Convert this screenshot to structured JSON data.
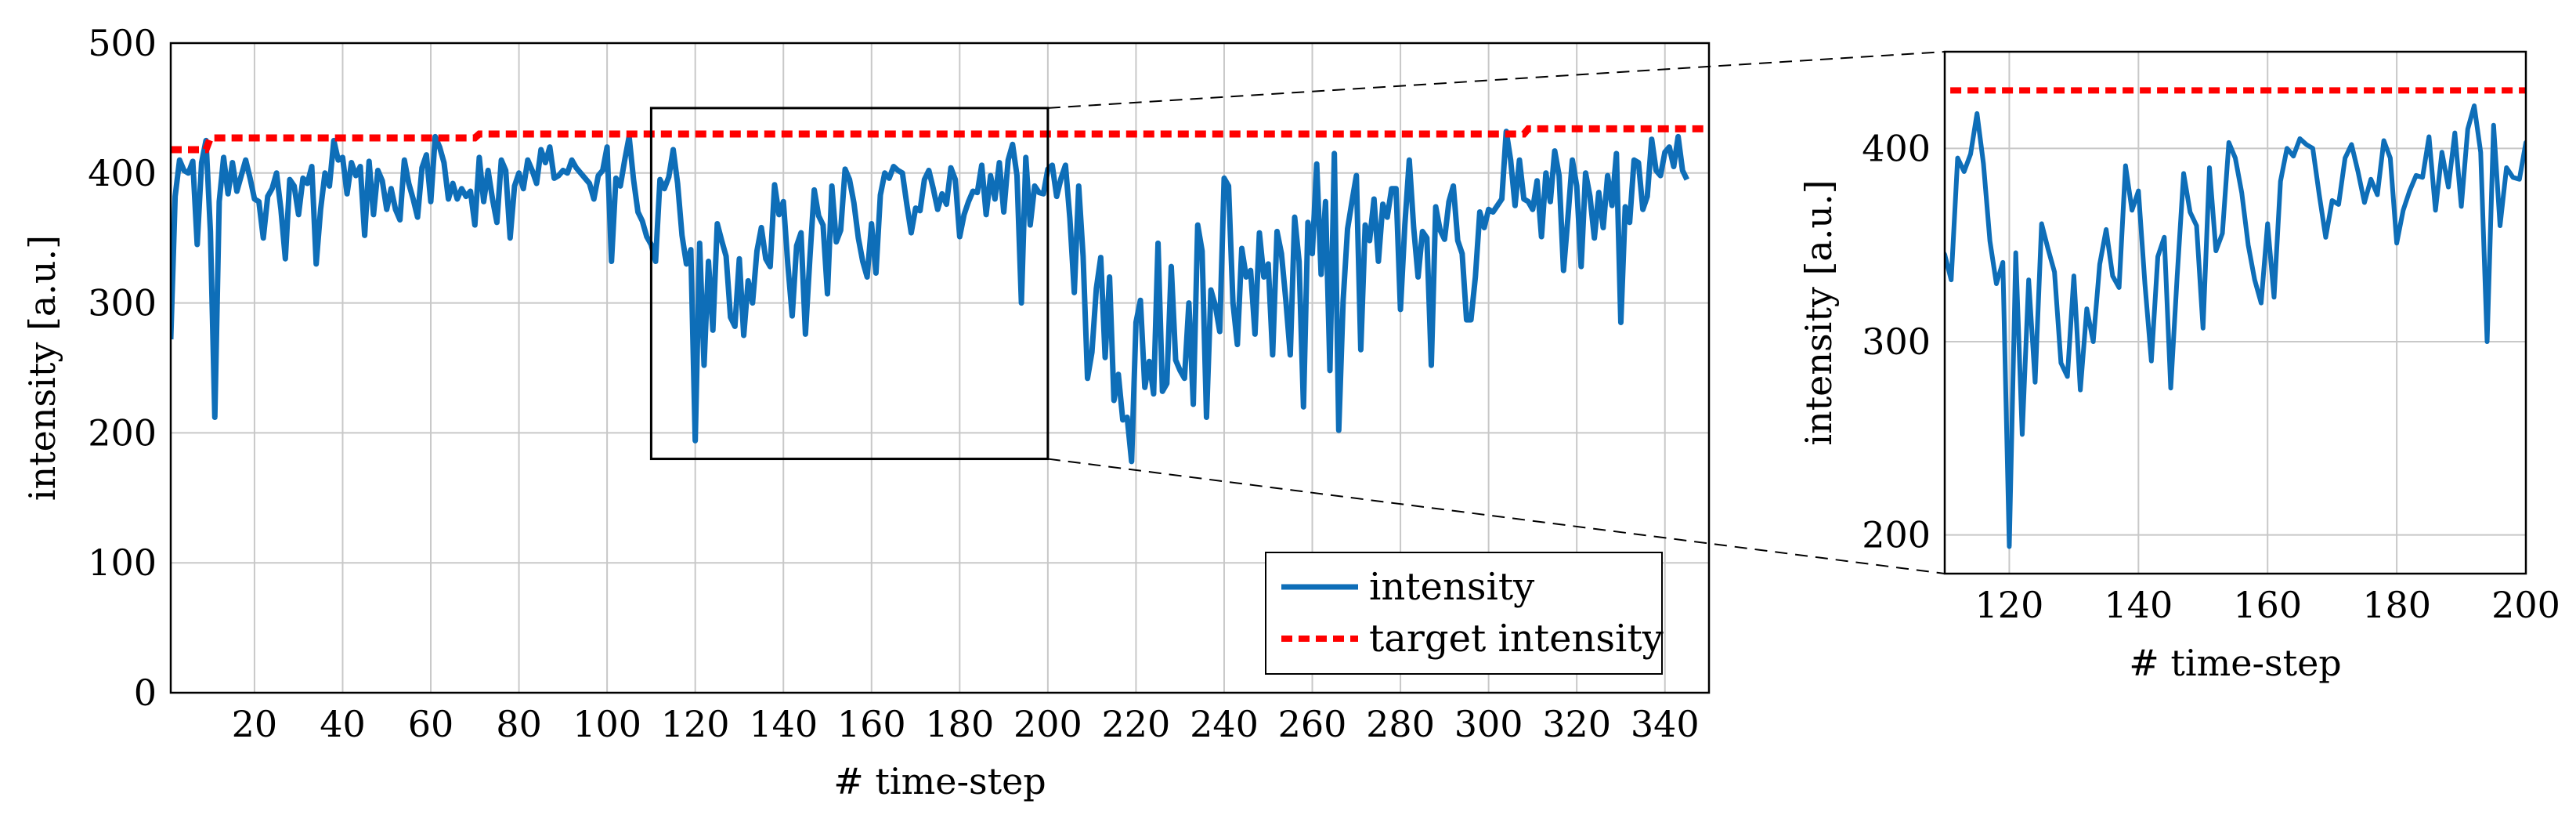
{
  "chart_data": [
    {
      "type": "line",
      "panel": "main",
      "title": "",
      "xlabel": "# time-step",
      "ylabel": "intensity [a.u.]",
      "xlim": [
        1,
        350
      ],
      "ylim": [
        0,
        500
      ],
      "x_ticks": [
        20,
        40,
        60,
        80,
        100,
        120,
        140,
        160,
        180,
        200,
        220,
        240,
        260,
        280,
        300,
        320,
        340
      ],
      "y_ticks": [
        0,
        100,
        200,
        300,
        400,
        500
      ],
      "grid": true,
      "legend_position": "bottom-right",
      "zoom_box": {
        "x": [
          110,
          200
        ],
        "y": [
          180,
          450
        ]
      },
      "series": [
        {
          "name": "intensity",
          "color": "#0e6eb8",
          "style": "solid",
          "start_x": 1,
          "values": [
            272,
            382,
            410,
            402,
            400,
            409,
            345,
            408,
            425,
            355,
            212,
            378,
            412,
            384,
            408,
            386,
            398,
            410,
            396,
            380,
            378,
            350,
            382,
            388,
            400,
            372,
            334,
            395,
            390,
            368,
            396,
            392,
            405,
            330,
            372,
            400,
            390,
            425,
            410,
            412,
            384,
            408,
            398,
            405,
            352,
            409,
            368,
            402,
            394,
            372,
            388,
            372,
            364,
            410,
            392,
            380,
            366,
            404,
            414,
            378,
            428,
            420,
            408,
            380,
            392,
            380,
            388,
            382,
            386,
            360,
            412,
            378,
            402,
            380,
            362,
            410,
            402,
            350,
            390,
            400,
            388,
            410,
            402,
            392,
            418,
            408,
            420,
            396,
            398,
            402,
            400,
            410,
            404,
            400,
            396,
            392,
            380,
            398,
            402,
            420,
            332,
            396,
            390,
            410,
            428,
            395,
            370,
            363,
            351,
            345,
            332,
            395,
            388,
            397,
            418,
            392,
            352,
            330,
            341,
            194,
            346,
            252,
            332,
            279,
            361,
            348,
            336,
            289,
            282,
            334,
            275,
            317,
            300,
            340,
            358,
            334,
            328,
            391,
            368,
            378,
            330,
            290,
            344,
            354,
            276,
            334,
            387,
            367,
            360,
            307,
            390,
            347,
            356,
            403,
            395,
            377,
            350,
            332,
            320,
            361,
            323,
            383,
            400,
            396,
            405,
            402,
            400,
            376,
            354,
            373,
            371,
            395,
            402,
            388,
            372,
            384,
            376,
            404,
            395,
            351,
            368,
            378,
            386,
            385,
            406,
            368,
            398,
            380,
            408,
            370,
            410,
            422,
            398,
            300,
            412,
            360,
            390,
            385,
            384,
            403,
            406,
            382,
            396,
            406,
            365,
            308,
            390,
            336,
            242,
            262,
            311,
            335,
            258,
            320,
            225,
            245,
            210,
            212,
            178,
            285,
            302,
            235,
            255,
            230,
            346,
            232,
            238,
            328,
            256,
            248,
            242,
            300,
            222,
            360,
            340,
            212,
            310,
            298,
            278,
            396,
            390,
            300,
            268,
            342,
            320,
            325,
            276,
            354,
            320,
            330,
            260,
            355,
            338,
            302,
            260,
            366,
            332,
            220,
            362,
            338,
            407,
            322,
            378,
            248,
            415,
            202,
            302,
            357,
            378,
            398,
            264,
            360,
            348,
            380,
            332,
            376,
            366,
            388,
            388,
            295,
            360,
            410,
            358,
            320,
            355,
            350,
            252,
            374,
            356,
            349,
            378,
            390,
            348,
            338,
            287,
            287,
            320,
            370,
            358,
            372,
            370,
            375,
            380,
            432,
            410,
            375,
            410,
            380,
            378,
            372,
            394,
            351,
            400,
            378,
            417,
            398,
            325,
            366,
            410,
            390,
            328,
            400,
            382,
            350,
            385,
            358,
            398,
            375,
            415,
            285,
            374,
            362,
            410,
            408,
            372,
            382,
            426,
            402,
            398,
            416,
            420,
            405,
            428,
            402,
            395
          ]
        },
        {
          "name": "target intensity",
          "color": "#ff0000",
          "style": "dashed",
          "x": [
            1,
            9,
            10,
            70,
            71,
            308,
            309,
            350
          ],
          "values": [
            418,
            418,
            427,
            427,
            430,
            430,
            434,
            434
          ]
        }
      ]
    },
    {
      "type": "line",
      "panel": "zoom",
      "title": "",
      "xlabel": "# time-step",
      "ylabel": "intensity [a.u.]",
      "xlim": [
        110,
        200
      ],
      "ylim": [
        180,
        450
      ],
      "x_ticks": [
        120,
        140,
        160,
        180,
        200
      ],
      "y_ticks": [
        200,
        300,
        400
      ],
      "grid": true,
      "series_ref": "same data as main panel, restricted to x in [110, 200]"
    }
  ]
}
